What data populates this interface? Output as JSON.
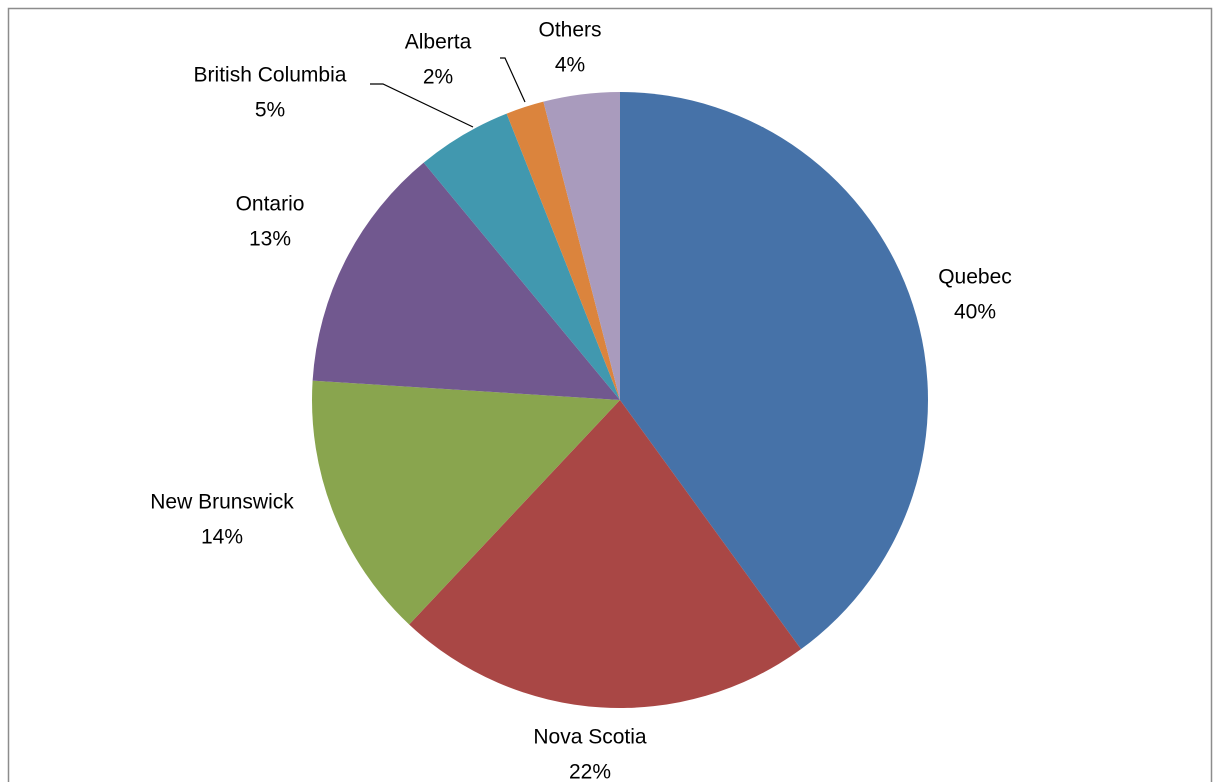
{
  "chart_data": {
    "type": "pie",
    "categories": [
      "Quebec",
      "Nova Scotia",
      "New Brunswick",
      "Ontario",
      "British Columbia",
      "Alberta",
      "Others"
    ],
    "values": [
      40,
      22,
      14,
      13,
      5,
      2,
      4
    ],
    "value_labels": [
      "40%",
      "22%",
      "14%",
      "13%",
      "5%",
      "2%",
      "4%"
    ],
    "colors": [
      "#4672a8",
      "#a94745",
      "#89a54e",
      "#71588f",
      "#4198af",
      "#db843d",
      "#a99bbd"
    ]
  }
}
